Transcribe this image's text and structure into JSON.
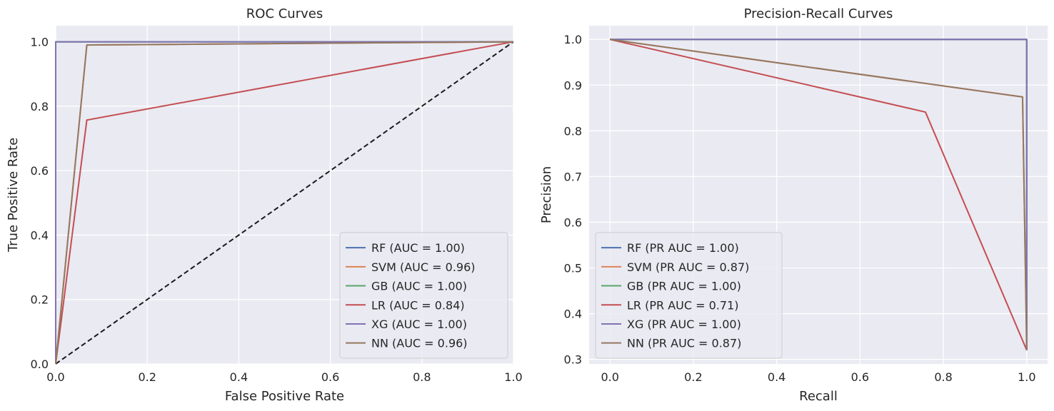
{
  "chart_data": [
    {
      "type": "line",
      "title": "ROC Curves",
      "xlabel": "False Positive Rate",
      "ylabel": "True Positive Rate",
      "xlim": [
        0.0,
        1.0
      ],
      "ylim": [
        0.0,
        1.05
      ],
      "xticks": [
        "0.0",
        "0.2",
        "0.4",
        "0.6",
        "0.8",
        "1.0"
      ],
      "yticks": [
        "0.0",
        "0.2",
        "0.4",
        "0.6",
        "0.8",
        "1.0"
      ],
      "grid": true,
      "legend_position": "lower-right",
      "baseline": {
        "x": [
          0,
          1
        ],
        "y": [
          0,
          1
        ],
        "style": "dashed",
        "color": "#1a1a1a"
      },
      "series": [
        {
          "name": "RF (AUC = 1.00)",
          "color": "#4c72b0",
          "x": [
            0,
            0,
            1
          ],
          "y": [
            0,
            1,
            1
          ]
        },
        {
          "name": "SVM (AUC = 0.96)",
          "color": "#dd8452",
          "x": [
            0,
            0.068,
            1
          ],
          "y": [
            0,
            0.99,
            1
          ]
        },
        {
          "name": "GB (AUC = 1.00)",
          "color": "#55a868",
          "x": [
            0,
            0,
            1
          ],
          "y": [
            0,
            1,
            1
          ]
        },
        {
          "name": "LR (AUC = 0.84)",
          "color": "#c44e52",
          "x": [
            0,
            0.068,
            1
          ],
          "y": [
            0,
            0.757,
            1
          ]
        },
        {
          "name": "XG (AUC = 1.00)",
          "color": "#8172b3",
          "x": [
            0,
            0,
            1
          ],
          "y": [
            0,
            1,
            1
          ]
        },
        {
          "name": "NN (AUC = 0.96)",
          "color": "#937860",
          "x": [
            0,
            0.068,
            1
          ],
          "y": [
            0,
            0.99,
            1
          ]
        }
      ]
    },
    {
      "type": "line",
      "title": "Precision-Recall Curves",
      "xlabel": "Recall",
      "ylabel": "Precision",
      "xlim": [
        -0.05,
        1.05
      ],
      "ylim": [
        0.29,
        1.03
      ],
      "xticks": [
        "0.0",
        "0.2",
        "0.4",
        "0.6",
        "0.8",
        "1.0"
      ],
      "yticks": [
        "0.3",
        "0.4",
        "0.5",
        "0.6",
        "0.7",
        "0.8",
        "0.9",
        "1.0"
      ],
      "grid": true,
      "legend_position": "lower-left",
      "series": [
        {
          "name": "RF (PR AUC = 1.00)",
          "color": "#4c72b0",
          "x": [
            0,
            1,
            1
          ],
          "y": [
            1,
            1,
            0.32
          ]
        },
        {
          "name": "SVM (PR AUC = 0.87)",
          "color": "#dd8452",
          "x": [
            0,
            0.99,
            1
          ],
          "y": [
            1,
            0.874,
            0.32
          ]
        },
        {
          "name": "GB (PR AUC = 1.00)",
          "color": "#55a868",
          "x": [
            0,
            1,
            1
          ],
          "y": [
            1,
            1,
            0.32
          ]
        },
        {
          "name": "LR (PR AUC = 0.71)",
          "color": "#c44e52",
          "x": [
            0,
            0.757,
            1
          ],
          "y": [
            1,
            0.841,
            0.32
          ]
        },
        {
          "name": "XG (PR AUC = 1.00)",
          "color": "#8172b3",
          "x": [
            0,
            1,
            1
          ],
          "y": [
            1,
            1,
            0.32
          ]
        },
        {
          "name": "NN (PR AUC = 0.87)",
          "color": "#937860",
          "x": [
            0,
            0.99,
            1
          ],
          "y": [
            1,
            0.874,
            0.32
          ]
        }
      ]
    }
  ]
}
